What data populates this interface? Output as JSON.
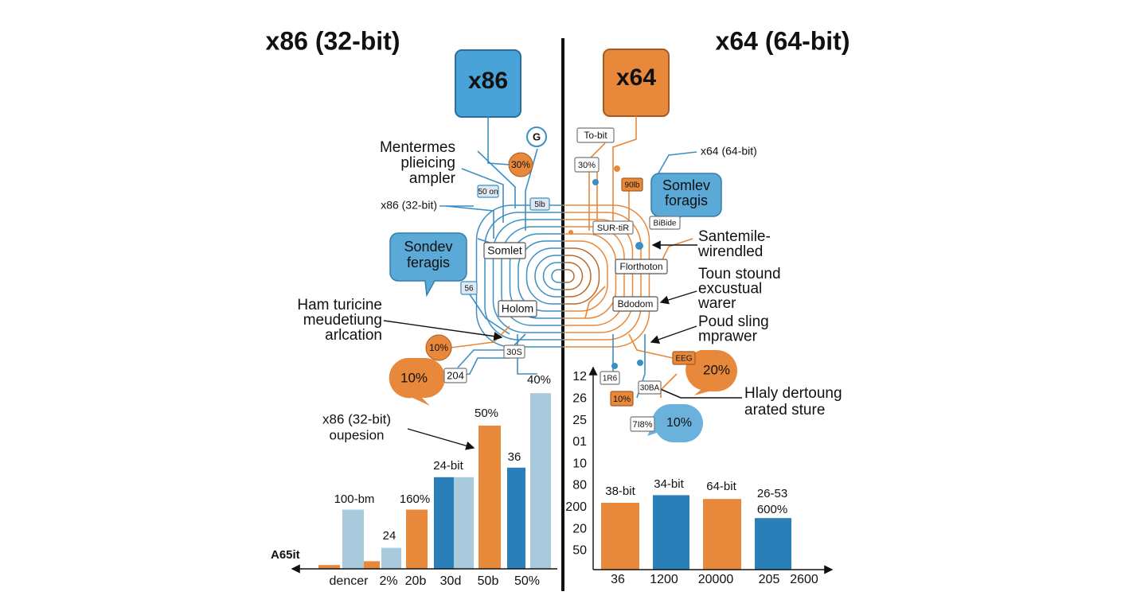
{
  "left": {
    "title": "x86 (32-bit)",
    "chip": "x86",
    "icon": "G",
    "callouts": [
      [
        "Mentermes",
        "plieicing",
        "ampler"
      ],
      [
        "x86 (32-bit)"
      ],
      [
        "Ham turicine",
        "meudetiung",
        "arlcation"
      ],
      [
        "x86 (32-bit)",
        "oupesion"
      ]
    ],
    "boxes": [
      "Somlet",
      "Holom",
      "50 on",
      "5lb",
      "56",
      "30S",
      "204"
    ],
    "badges": [
      "30%",
      "10%"
    ],
    "bubbles": [
      [
        "Sondev",
        "feragis"
      ],
      [
        "10%"
      ]
    ],
    "chart": {
      "axis_label": "A65it",
      "ylim": [
        0,
        100
      ],
      "values": [
        2,
        31,
        4,
        11,
        31,
        48,
        48,
        75,
        53,
        92
      ],
      "colors": [
        "#e8883a",
        "#a9c9dd",
        "#e8883a",
        "#a9c9dd",
        "#e8883a",
        "#2a7fb8",
        "#a9c9dd",
        "#e8883a",
        "#2a7fb8",
        "#a9c9dd"
      ],
      "bar_labels": [
        "100-bm",
        "24",
        "160%",
        "24-bit",
        "50%",
        "36",
        "40%"
      ],
      "x_labels": [
        "dencer",
        "2%",
        "20b",
        "30d",
        "50b",
        "50%"
      ]
    }
  },
  "right": {
    "title": "x64 (64-bit)",
    "chip": "x64",
    "callouts": [
      [
        "x64 (64-bit)"
      ],
      [
        "Santemile-",
        "wirendled"
      ],
      [
        "Toun stound",
        "excustual",
        "warer"
      ],
      [
        "Poud sling",
        "mprawer"
      ],
      [
        "Hlaly dertoung",
        "arated sture"
      ]
    ],
    "boxes": [
      "To-bit",
      "30%",
      "SUR-tiR",
      "BiBide",
      "Florthoton",
      "Bdodom",
      "1R6",
      "30BA",
      "7I8%"
    ],
    "tags": [
      "90lb",
      "EEG",
      "10%"
    ],
    "bubbles": [
      [
        "Somlev",
        "foragis"
      ],
      [
        "20%"
      ],
      [
        "10%"
      ]
    ],
    "chart": {
      "ylim": [
        0,
        100
      ],
      "axis_ticks": [
        "12",
        "26",
        "25",
        "01",
        "10",
        "80",
        "200",
        "20",
        "50"
      ],
      "values": [
        35,
        39,
        37,
        27
      ],
      "colors": [
        "#e8883a",
        "#2a7fb8",
        "#e8883a",
        "#2a7fb8"
      ],
      "bar_labels": [
        [
          "38-bit"
        ],
        [
          "34-bit"
        ],
        [
          "64-bit"
        ],
        [
          "26-53",
          "600%"
        ]
      ],
      "x_labels": [
        "36",
        "1200",
        "20000",
        "205",
        "2600"
      ]
    }
  }
}
